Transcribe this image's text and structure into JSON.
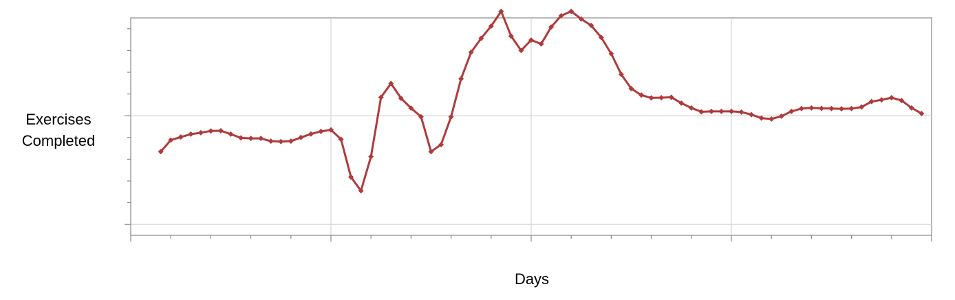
{
  "chart_data": {
    "type": "line",
    "title": "",
    "xlabel": "Days",
    "ylabel": "Exercises\nCompleted",
    "grid": true,
    "legend": "none",
    "xlim": [
      0,
      80
    ],
    "ylim": [
      0,
      10
    ],
    "x_major_ticks": [
      0,
      20,
      40,
      60,
      80
    ],
    "x_minor_tick_step": 4,
    "y_major_ticks": [
      0.5,
      5.5
    ],
    "y_minor_tick_step": 1,
    "colors": {
      "line": "#B03A3A",
      "grid": "#D9D9D9",
      "axis": "#888888"
    },
    "series": [
      {
        "values": [
          [
            3,
            3.85
          ],
          [
            4,
            4.38
          ],
          [
            5,
            4.52
          ],
          [
            6,
            4.65
          ],
          [
            7,
            4.72
          ],
          [
            8,
            4.8
          ],
          [
            9,
            4.81
          ],
          [
            10,
            4.65
          ],
          [
            11,
            4.48
          ],
          [
            12,
            4.46
          ],
          [
            13,
            4.46
          ],
          [
            14,
            4.33
          ],
          [
            15,
            4.31
          ],
          [
            16,
            4.33
          ],
          [
            17,
            4.5
          ],
          [
            18,
            4.66
          ],
          [
            19,
            4.78
          ],
          [
            20,
            4.85
          ],
          [
            21,
            4.42
          ],
          [
            22,
            2.68
          ],
          [
            23,
            2.05
          ],
          [
            24,
            3.62
          ],
          [
            25,
            6.35
          ],
          [
            26,
            6.98
          ],
          [
            27,
            6.3
          ],
          [
            28,
            5.85
          ],
          [
            29,
            5.45
          ],
          [
            30,
            3.85
          ],
          [
            31,
            4.17
          ],
          [
            32,
            5.45
          ],
          [
            33,
            7.2
          ],
          [
            34,
            8.42
          ],
          [
            35,
            9.06
          ],
          [
            36,
            9.62
          ],
          [
            37,
            10.3
          ],
          [
            38,
            9.16
          ],
          [
            39,
            8.5
          ],
          [
            40,
            8.98
          ],
          [
            41,
            8.8
          ],
          [
            42,
            9.58
          ],
          [
            43,
            10.1
          ],
          [
            44,
            10.3
          ],
          [
            45,
            9.95
          ],
          [
            46,
            9.65
          ],
          [
            47,
            9.1
          ],
          [
            48,
            8.35
          ],
          [
            49,
            7.4
          ],
          [
            50,
            6.75
          ],
          [
            51,
            6.45
          ],
          [
            52,
            6.32
          ],
          [
            53,
            6.33
          ],
          [
            54,
            6.35
          ],
          [
            55,
            6.08
          ],
          [
            56,
            5.86
          ],
          [
            57,
            5.68
          ],
          [
            58,
            5.7
          ],
          [
            59,
            5.7
          ],
          [
            60,
            5.7
          ],
          [
            61,
            5.67
          ],
          [
            62,
            5.55
          ],
          [
            63,
            5.39
          ],
          [
            64,
            5.35
          ],
          [
            65,
            5.48
          ],
          [
            66,
            5.7
          ],
          [
            67,
            5.83
          ],
          [
            68,
            5.86
          ],
          [
            69,
            5.84
          ],
          [
            70,
            5.83
          ],
          [
            71,
            5.82
          ],
          [
            72,
            5.83
          ],
          [
            73,
            5.9
          ],
          [
            74,
            6.15
          ],
          [
            75,
            6.23
          ],
          [
            76,
            6.33
          ],
          [
            77,
            6.2
          ],
          [
            78,
            5.86
          ],
          [
            79,
            5.6
          ]
        ]
      }
    ]
  }
}
